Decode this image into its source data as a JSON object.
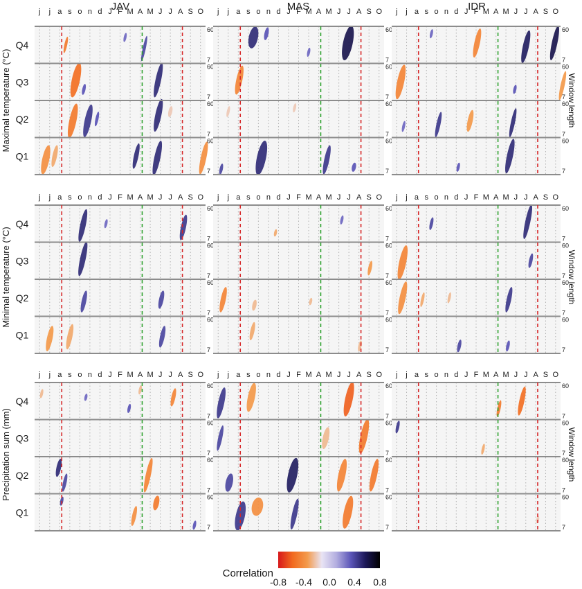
{
  "chart_data": {
    "type": "heatmap",
    "title": "",
    "sites": [
      "JAV",
      "MAS",
      "IDR"
    ],
    "rows": [
      {
        "ylabel": "Maximal temperature (°C)",
        "quantiles": [
          "Q4",
          "Q3",
          "Q2",
          "Q1"
        ]
      },
      {
        "ylabel": "Minimal temperature (°C)",
        "quantiles": [
          "Q4",
          "Q3",
          "Q2",
          "Q1"
        ]
      },
      {
        "ylabel": "Precipitation sum (mm)",
        "quantiles": [
          "Q4",
          "Q3",
          "Q2",
          "Q1"
        ]
      }
    ],
    "month_labels": [
      "j",
      "j",
      "a",
      "s",
      "o",
      "n",
      "d",
      "J",
      "F",
      "M",
      "A",
      "M",
      "J",
      "J",
      "A",
      "S",
      "O"
    ],
    "window_length_label": "Window length",
    "window_length_ticks": [
      "60",
      "7"
    ],
    "colorbar": {
      "title": "Correlation",
      "ticks": [
        "-0.8",
        "-0.4",
        "0.0",
        "0.4",
        "0.8"
      ],
      "range": [
        -0.8,
        0.8
      ],
      "colors": [
        "#d7191c",
        "#f26b1f",
        "#f39a4b",
        "#e9e4f4",
        "#b3aee0",
        "#5b55b8",
        "#1c1858",
        "#000000"
      ]
    },
    "reference_lines": [
      {
        "month_index": 2.2,
        "color": "#d62728"
      },
      {
        "month_index": 10.2,
        "color": "#2ca02c"
      },
      {
        "month_index": 14.2,
        "color": "#d62728"
      }
    ],
    "blobs": [
      {
        "r": 0,
        "c": 0,
        "q": 3,
        "x": 2.6,
        "y": 0.5,
        "w": 0.08,
        "h": 0.45,
        "v": -0.5
      },
      {
        "r": 0,
        "c": 0,
        "q": 3,
        "x": 10.4,
        "y": 0.6,
        "w": 0.1,
        "h": 0.7,
        "v": 0.4
      },
      {
        "r": 0,
        "c": 0,
        "q": 3,
        "x": 8.5,
        "y": 0.3,
        "w": 0.07,
        "h": 0.25,
        "v": 0.3
      },
      {
        "r": 0,
        "c": 0,
        "q": 2,
        "x": 3.6,
        "y": 0.45,
        "w": 0.6,
        "h": 0.95,
        "v": -0.55
      },
      {
        "r": 0,
        "c": 0,
        "q": 2,
        "x": 11.8,
        "y": 0.45,
        "w": 0.35,
        "h": 0.95,
        "v": 0.5
      },
      {
        "r": 0,
        "c": 0,
        "q": 2,
        "x": 4.4,
        "y": 0.7,
        "w": 0.12,
        "h": 0.3,
        "v": 0.35
      },
      {
        "r": 0,
        "c": 0,
        "q": 1,
        "x": 3.3,
        "y": 0.55,
        "w": 0.5,
        "h": 0.95,
        "v": -0.5
      },
      {
        "r": 0,
        "c": 0,
        "q": 1,
        "x": 4.8,
        "y": 0.55,
        "w": 0.45,
        "h": 0.9,
        "v": 0.45
      },
      {
        "r": 0,
        "c": 0,
        "q": 1,
        "x": 11.8,
        "y": 0.4,
        "w": 0.4,
        "h": 0.9,
        "v": 0.5
      },
      {
        "r": 0,
        "c": 0,
        "q": 1,
        "x": 13.0,
        "y": 0.3,
        "w": 0.18,
        "h": 0.3,
        "v": -0.2
      },
      {
        "r": 0,
        "c": 0,
        "q": 1,
        "x": 5.7,
        "y": 0.5,
        "w": 0.1,
        "h": 0.4,
        "v": 0.35
      },
      {
        "r": 0,
        "c": 0,
        "q": 0,
        "x": 0.6,
        "y": 0.6,
        "w": 0.5,
        "h": 0.8,
        "v": -0.4
      },
      {
        "r": 0,
        "c": 0,
        "q": 0,
        "x": 1.5,
        "y": 0.5,
        "w": 0.25,
        "h": 0.6,
        "v": -0.3
      },
      {
        "r": 0,
        "c": 0,
        "q": 0,
        "x": 9.6,
        "y": 0.5,
        "w": 0.25,
        "h": 0.7,
        "v": 0.5
      },
      {
        "r": 0,
        "c": 0,
        "q": 0,
        "x": 11.7,
        "y": 0.55,
        "w": 0.4,
        "h": 0.95,
        "v": 0.5
      },
      {
        "r": 0,
        "c": 0,
        "q": 0,
        "x": 16.3,
        "y": 0.55,
        "w": 0.35,
        "h": 0.9,
        "v": -0.4
      },
      {
        "r": 0,
        "c": 1,
        "q": 3,
        "x": 3.5,
        "y": 0.3,
        "w": 0.7,
        "h": 0.6,
        "v": 0.5
      },
      {
        "r": 0,
        "c": 1,
        "q": 3,
        "x": 4.8,
        "y": 0.2,
        "w": 0.2,
        "h": 0.35,
        "v": 0.35
      },
      {
        "r": 0,
        "c": 1,
        "q": 3,
        "x": 12.9,
        "y": 0.45,
        "w": 0.75,
        "h": 0.95,
        "v": 0.6
      },
      {
        "r": 0,
        "c": 1,
        "q": 3,
        "x": 9.0,
        "y": 0.7,
        "w": 0.08,
        "h": 0.25,
        "v": 0.3
      },
      {
        "r": 0,
        "c": 1,
        "q": 2,
        "x": 2.1,
        "y": 0.45,
        "w": 0.4,
        "h": 0.8,
        "v": -0.45
      },
      {
        "r": 0,
        "c": 1,
        "q": 1,
        "x": 7.6,
        "y": 0.2,
        "w": 0.08,
        "h": 0.25,
        "v": -0.2
      },
      {
        "r": 0,
        "c": 1,
        "q": 1,
        "x": 1.0,
        "y": 0.3,
        "w": 0.08,
        "h": 0.3,
        "v": -0.2
      },
      {
        "r": 0,
        "c": 1,
        "q": 0,
        "x": 4.3,
        "y": 0.55,
        "w": 0.7,
        "h": 0.95,
        "v": 0.5
      },
      {
        "r": 0,
        "c": 1,
        "q": 0,
        "x": 0.3,
        "y": 0.85,
        "w": 0.12,
        "h": 0.3,
        "v": 0.4
      },
      {
        "r": 0,
        "c": 1,
        "q": 0,
        "x": 10.8,
        "y": 0.6,
        "w": 0.3,
        "h": 0.8,
        "v": 0.45
      },
      {
        "r": 0,
        "c": 1,
        "q": 0,
        "x": 13.5,
        "y": 0.8,
        "w": 0.2,
        "h": 0.25,
        "v": 0.35
      },
      {
        "r": 0,
        "c": 2,
        "q": 3,
        "x": 8.1,
        "y": 0.45,
        "w": 0.35,
        "h": 0.8,
        "v": -0.45
      },
      {
        "r": 0,
        "c": 2,
        "q": 3,
        "x": 13.0,
        "y": 0.55,
        "w": 0.4,
        "h": 0.9,
        "v": 0.55
      },
      {
        "r": 0,
        "c": 2,
        "q": 3,
        "x": 15.9,
        "y": 0.45,
        "w": 0.35,
        "h": 0.95,
        "v": 0.6
      },
      {
        "r": 0,
        "c": 2,
        "q": 3,
        "x": 3.5,
        "y": 0.2,
        "w": 0.08,
        "h": 0.25,
        "v": 0.3
      },
      {
        "r": 0,
        "c": 2,
        "q": 2,
        "x": 0.4,
        "y": 0.5,
        "w": 0.5,
        "h": 0.95,
        "v": -0.45
      },
      {
        "r": 0,
        "c": 2,
        "q": 2,
        "x": 16.7,
        "y": 0.6,
        "w": 0.2,
        "h": 0.8,
        "v": -0.35
      },
      {
        "r": 0,
        "c": 2,
        "q": 2,
        "x": 11.9,
        "y": 0.7,
        "w": 0.1,
        "h": 0.25,
        "v": 0.35
      },
      {
        "r": 0,
        "c": 2,
        "q": 1,
        "x": 4.2,
        "y": 0.65,
        "w": 0.2,
        "h": 0.7,
        "v": 0.45
      },
      {
        "r": 0,
        "c": 2,
        "q": 1,
        "x": 7.4,
        "y": 0.55,
        "w": 0.3,
        "h": 0.6,
        "v": -0.35
      },
      {
        "r": 0,
        "c": 2,
        "q": 1,
        "x": 11.7,
        "y": 0.6,
        "w": 0.2,
        "h": 0.8,
        "v": 0.5
      },
      {
        "r": 0,
        "c": 2,
        "q": 1,
        "x": 0.7,
        "y": 0.7,
        "w": 0.08,
        "h": 0.3,
        "v": 0.3
      },
      {
        "r": 0,
        "c": 2,
        "q": 0,
        "x": 11.4,
        "y": 0.5,
        "w": 0.4,
        "h": 0.95,
        "v": 0.5
      },
      {
        "r": 0,
        "c": 2,
        "q": 0,
        "x": 6.2,
        "y": 0.8,
        "w": 0.1,
        "h": 0.25,
        "v": 0.35
      },
      {
        "r": 1,
        "c": 0,
        "q": 3,
        "x": 4.3,
        "y": 0.55,
        "w": 0.35,
        "h": 0.9,
        "v": 0.5
      },
      {
        "r": 1,
        "c": 0,
        "q": 3,
        "x": 6.6,
        "y": 0.5,
        "w": 0.08,
        "h": 0.25,
        "v": 0.3
      },
      {
        "r": 1,
        "c": 0,
        "q": 3,
        "x": 14.3,
        "y": 0.6,
        "w": 0.3,
        "h": 0.7,
        "v": 0.45
      },
      {
        "r": 1,
        "c": 0,
        "q": 2,
        "x": 4.3,
        "y": 0.45,
        "w": 0.35,
        "h": 0.95,
        "v": 0.5
      },
      {
        "r": 1,
        "c": 0,
        "q": 1,
        "x": 4.4,
        "y": 0.6,
        "w": 0.25,
        "h": 0.6,
        "v": 0.4
      },
      {
        "r": 1,
        "c": 0,
        "q": 1,
        "x": 12.1,
        "y": 0.55,
        "w": 0.25,
        "h": 0.5,
        "v": 0.4
      },
      {
        "r": 1,
        "c": 0,
        "q": 0,
        "x": 1.0,
        "y": 0.6,
        "w": 0.35,
        "h": 0.7,
        "v": -0.35
      },
      {
        "r": 1,
        "c": 0,
        "q": 0,
        "x": 3.0,
        "y": 0.55,
        "w": 0.3,
        "h": 0.7,
        "v": -0.3
      },
      {
        "r": 1,
        "c": 0,
        "q": 0,
        "x": 12.2,
        "y": 0.55,
        "w": 0.25,
        "h": 0.6,
        "v": 0.4
      },
      {
        "r": 1,
        "c": 1,
        "q": 3,
        "x": 5.7,
        "y": 0.75,
        "w": 0.08,
        "h": 0.2,
        "v": -0.3
      },
      {
        "r": 1,
        "c": 1,
        "q": 3,
        "x": 12.3,
        "y": 0.4,
        "w": 0.08,
        "h": 0.25,
        "v": 0.3
      },
      {
        "r": 1,
        "c": 1,
        "q": 2,
        "x": 15.1,
        "y": 0.7,
        "w": 0.15,
        "h": 0.4,
        "v": -0.35
      },
      {
        "r": 1,
        "c": 1,
        "q": 1,
        "x": 0.5,
        "y": 0.55,
        "w": 0.3,
        "h": 0.7,
        "v": -0.45
      },
      {
        "r": 1,
        "c": 1,
        "q": 1,
        "x": 3.6,
        "y": 0.7,
        "w": 0.2,
        "h": 0.3,
        "v": -0.25
      },
      {
        "r": 1,
        "c": 1,
        "q": 1,
        "x": 9.2,
        "y": 0.6,
        "w": 0.08,
        "h": 0.2,
        "v": -0.25
      },
      {
        "r": 1,
        "c": 1,
        "q": 0,
        "x": 3.4,
        "y": 0.4,
        "w": 0.2,
        "h": 0.5,
        "v": -0.3
      },
      {
        "r": 1,
        "c": 1,
        "q": 0,
        "x": 14.1,
        "y": 0.8,
        "w": 0.12,
        "h": 0.3,
        "v": -0.25
      },
      {
        "r": 1,
        "c": 2,
        "q": 3,
        "x": 13.2,
        "y": 0.45,
        "w": 0.3,
        "h": 0.95,
        "v": 0.5
      },
      {
        "r": 1,
        "c": 2,
        "q": 3,
        "x": 3.5,
        "y": 0.5,
        "w": 0.12,
        "h": 0.35,
        "v": 0.4
      },
      {
        "r": 1,
        "c": 2,
        "q": 2,
        "x": 0.6,
        "y": 0.55,
        "w": 0.5,
        "h": 0.95,
        "v": -0.45
      },
      {
        "r": 1,
        "c": 2,
        "q": 2,
        "x": 13.5,
        "y": 0.5,
        "w": 0.15,
        "h": 0.4,
        "v": 0.4
      },
      {
        "r": 1,
        "c": 2,
        "q": 1,
        "x": 0.6,
        "y": 0.5,
        "w": 0.4,
        "h": 0.9,
        "v": -0.4
      },
      {
        "r": 1,
        "c": 2,
        "q": 1,
        "x": 2.6,
        "y": 0.55,
        "w": 0.1,
        "h": 0.4,
        "v": -0.3
      },
      {
        "r": 1,
        "c": 2,
        "q": 1,
        "x": 11.3,
        "y": 0.55,
        "w": 0.25,
        "h": 0.7,
        "v": 0.45
      },
      {
        "r": 1,
        "c": 2,
        "q": 1,
        "x": 5.3,
        "y": 0.5,
        "w": 0.08,
        "h": 0.3,
        "v": -0.25
      },
      {
        "r": 1,
        "c": 2,
        "q": 0,
        "x": 6.3,
        "y": 0.8,
        "w": 0.15,
        "h": 0.35,
        "v": 0.4
      },
      {
        "r": 1,
        "c": 2,
        "q": 0,
        "x": 11.2,
        "y": 0.8,
        "w": 0.12,
        "h": 0.3,
        "v": 0.35
      },
      {
        "r": 2,
        "c": 0,
        "q": 3,
        "x": 0.2,
        "y": 0.3,
        "w": 0.08,
        "h": 0.25,
        "v": -0.25
      },
      {
        "r": 2,
        "c": 0,
        "q": 3,
        "x": 4.6,
        "y": 0.4,
        "w": 0.08,
        "h": 0.2,
        "v": 0.3
      },
      {
        "r": 2,
        "c": 0,
        "q": 3,
        "x": 8.9,
        "y": 0.7,
        "w": 0.1,
        "h": 0.25,
        "v": 0.35
      },
      {
        "r": 2,
        "c": 0,
        "q": 3,
        "x": 13.3,
        "y": 0.4,
        "w": 0.2,
        "h": 0.5,
        "v": -0.45
      },
      {
        "r": 2,
        "c": 0,
        "q": 3,
        "x": 10.0,
        "y": 0.2,
        "w": 0.08,
        "h": 0.25,
        "v": -0.25
      },
      {
        "r": 2,
        "c": 0,
        "q": 1,
        "x": 1.9,
        "y": 0.3,
        "w": 0.25,
        "h": 0.5,
        "v": 0.5
      },
      {
        "r": 2,
        "c": 0,
        "q": 1,
        "x": 2.5,
        "y": 0.7,
        "w": 0.15,
        "h": 0.5,
        "v": 0.4
      },
      {
        "r": 2,
        "c": 0,
        "q": 1,
        "x": 10.8,
        "y": 0.5,
        "w": 0.3,
        "h": 0.95,
        "v": -0.45
      },
      {
        "r": 2,
        "c": 0,
        "q": 0,
        "x": 2.2,
        "y": 0.2,
        "w": 0.1,
        "h": 0.25,
        "v": 0.4
      },
      {
        "r": 2,
        "c": 0,
        "q": 0,
        "x": 9.4,
        "y": 0.6,
        "w": 0.2,
        "h": 0.55,
        "v": -0.4
      },
      {
        "r": 2,
        "c": 0,
        "q": 0,
        "x": 11.6,
        "y": 0.25,
        "w": 0.35,
        "h": 0.4,
        "v": -0.5
      },
      {
        "r": 2,
        "c": 0,
        "q": 0,
        "x": 15.4,
        "y": 0.85,
        "w": 0.1,
        "h": 0.25,
        "v": 0.35
      },
      {
        "r": 2,
        "c": 1,
        "q": 3,
        "x": 0.3,
        "y": 0.55,
        "w": 0.4,
        "h": 0.85,
        "v": 0.45
      },
      {
        "r": 2,
        "c": 1,
        "q": 3,
        "x": 3.3,
        "y": 0.4,
        "w": 0.5,
        "h": 0.8,
        "v": -0.35
      },
      {
        "r": 2,
        "c": 1,
        "q": 3,
        "x": 13.0,
        "y": 0.45,
        "w": 0.55,
        "h": 0.95,
        "v": -0.6
      },
      {
        "r": 2,
        "c": 1,
        "q": 2,
        "x": 0.2,
        "y": 0.5,
        "w": 0.2,
        "h": 0.7,
        "v": 0.4
      },
      {
        "r": 2,
        "c": 1,
        "q": 2,
        "x": 14.5,
        "y": 0.45,
        "w": 0.5,
        "h": 0.95,
        "v": -0.5
      },
      {
        "r": 2,
        "c": 1,
        "q": 2,
        "x": 10.7,
        "y": 0.5,
        "w": 0.4,
        "h": 0.6,
        "v": -0.25
      },
      {
        "r": 2,
        "c": 1,
        "q": 1,
        "x": 7.4,
        "y": 0.5,
        "w": 0.7,
        "h": 0.95,
        "v": 0.55
      },
      {
        "r": 2,
        "c": 1,
        "q": 1,
        "x": 1.1,
        "y": 0.7,
        "w": 0.5,
        "h": 0.5,
        "v": 0.4
      },
      {
        "r": 2,
        "c": 1,
        "q": 1,
        "x": 12.3,
        "y": 0.5,
        "w": 0.5,
        "h": 0.9,
        "v": -0.45
      },
      {
        "r": 2,
        "c": 1,
        "q": 1,
        "x": 15.5,
        "y": 0.5,
        "w": 0.4,
        "h": 0.9,
        "v": -0.5
      },
      {
        "r": 2,
        "c": 1,
        "q": 0,
        "x": 2.2,
        "y": 0.6,
        "w": 0.7,
        "h": 0.8,
        "v": 0.45
      },
      {
        "r": 2,
        "c": 1,
        "q": 0,
        "x": 3.9,
        "y": 0.35,
        "w": 0.9,
        "h": 0.5,
        "v": -0.4
      },
      {
        "r": 2,
        "c": 1,
        "q": 0,
        "x": 7.6,
        "y": 0.55,
        "w": 0.3,
        "h": 0.85,
        "v": 0.45
      },
      {
        "r": 2,
        "c": 1,
        "q": 0,
        "x": 12.9,
        "y": 0.5,
        "w": 0.6,
        "h": 0.9,
        "v": -0.5
      },
      {
        "r": 2,
        "c": 2,
        "q": 3,
        "x": 10.3,
        "y": 0.7,
        "w": 0.12,
        "h": 0.45,
        "v": -0.5
      },
      {
        "r": 2,
        "c": 2,
        "q": 3,
        "x": 12.6,
        "y": 0.5,
        "w": 0.3,
        "h": 0.8,
        "v": -0.55
      },
      {
        "r": 2,
        "c": 2,
        "q": 2,
        "x": 0.1,
        "y": 0.2,
        "w": 0.12,
        "h": 0.35,
        "v": 0.45
      },
      {
        "r": 2,
        "c": 2,
        "q": 2,
        "x": 8.7,
        "y": 0.8,
        "w": 0.08,
        "h": 0.3,
        "v": -0.3
      },
      {
        "r": 2,
        "c": 2,
        "q": 0,
        "x": 14.2,
        "y": 0.7,
        "w": 0.08,
        "h": 0.2,
        "v": -0.2
      }
    ]
  }
}
